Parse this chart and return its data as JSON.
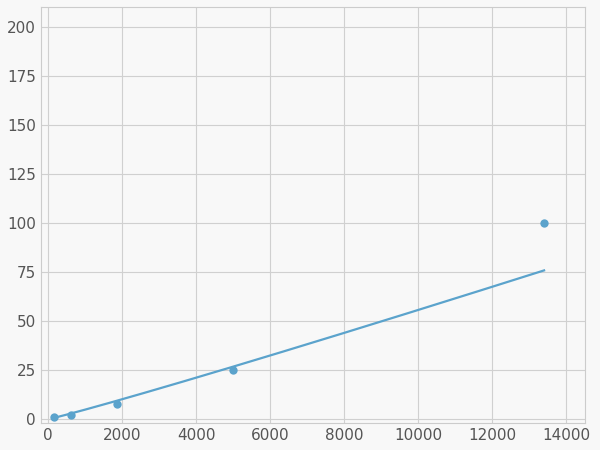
{
  "x_points": [
    156,
    625,
    1875,
    5000,
    13400
  ],
  "y_points": [
    1,
    2,
    8,
    25,
    100
  ],
  "line_color": "#5ba3cc",
  "marker_color": "#5ba3cc",
  "marker_size": 6,
  "line_width": 1.6,
  "xlim": [
    -200,
    14500
  ],
  "ylim": [
    -2,
    210
  ],
  "xticks": [
    0,
    2000,
    4000,
    6000,
    8000,
    10000,
    12000,
    14000
  ],
  "yticks": [
    0,
    25,
    50,
    75,
    100,
    125,
    150,
    175,
    200
  ],
  "grid_color": "#d0d0d0",
  "background_color": "#f8f8f8",
  "spine_color": "#cccccc",
  "tick_labelsize": 11,
  "tick_labelcolor": "#555555"
}
